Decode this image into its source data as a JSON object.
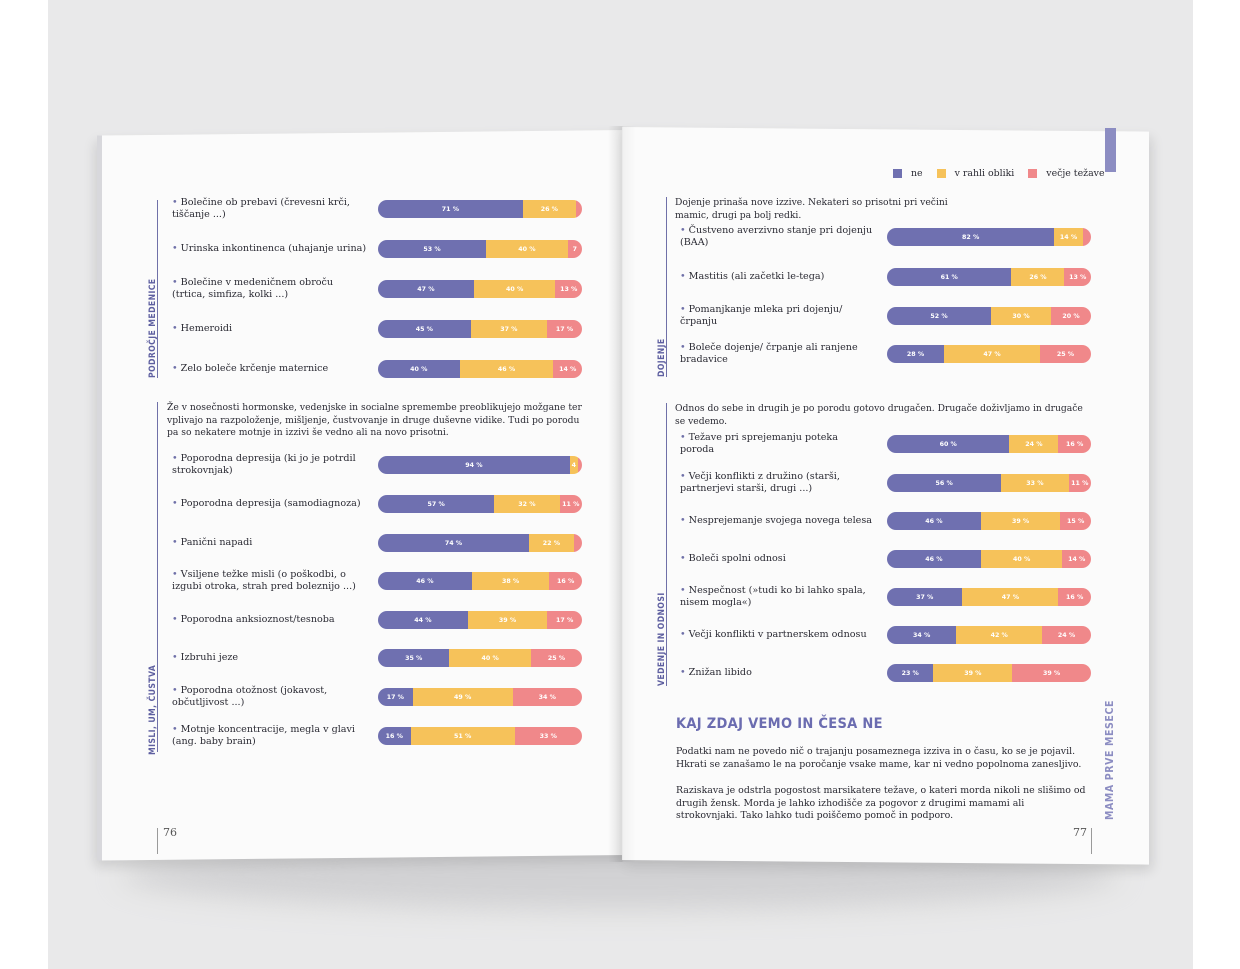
{
  "colors": {
    "ne": "#6f70b0",
    "v_rahli_obliki": "#f6c25a",
    "vecje_tezave": "#f0888a"
  },
  "legend": [
    {
      "label": "ne",
      "color": "#6f70b0"
    },
    {
      "label": "v rahli obliki",
      "color": "#f6c25a"
    },
    {
      "label": "večje težave",
      "color": "#f0888a"
    }
  ],
  "left_page": {
    "page_number": "76",
    "section_pelvis_title": "PODROČJE MEDENICE",
    "section_mind_title": "MISLI, UM, ČUSTVA",
    "mind_intro": "Že v nosečnosti hormonske, vedenjske in socialne spremembe preoblikujejo možgane ter vplivajo na razpoloženje, mišljenje, čustvovanje in druge duševne vidike. Tudi po porodu pa so nekatere motnje in izzivi še vedno ali na novo prisotni."
  },
  "right_page": {
    "page_number": "77",
    "section_feeding_title": "DOJENJE",
    "section_behaviour_title": "VEDENJE IN ODNOSI",
    "feeding_intro": "Dojenje prinaša nove izzive. Nekateri so prisotni pri večini mamic, drugi pa bolj redki.",
    "behaviour_intro": "Odnos do sebe in drugih je po porodu gotovo drugačen. Drugače doživljamo in drugače se vedemo.",
    "heading": "KAJ ZDAJ VEMO IN ČESA NE",
    "paragraph_1": "Podatki nam ne povedo nič o trajanju posameznega izziva in o času, ko se je pojavil. Hkrati se zanašamo le na poročanje vsake mame, kar ni vedno popolnoma zanesljivo.",
    "paragraph_2": "Raziskava je odstrla pogostost marsikatere težave, o kateri morda nikoli ne slišimo od drugih žensk. Morda je lahko izhodišče za pogovor z drugimi mamami ali strokovnjaki. Tako lahko tudi poiščemo pomoč in podporo.",
    "running_title": "MAMA PRVE MESECE"
  },
  "chart_data": [
    {
      "type": "bar",
      "orientation": "horizontal-stacked-100",
      "section": "PODROČJE MEDENICE",
      "series_names": [
        "ne",
        "v rahli obliki",
        "večje težave"
      ],
      "items": [
        {
          "label": "Bolečine ob prebavi (črevesni krči, tiščanje ...)",
          "values": [
            71,
            26,
            3
          ],
          "labels": [
            "71 %",
            "26 %",
            ""
          ]
        },
        {
          "label": "Urinska inkontinenca (uhajanje urina)",
          "values": [
            53,
            40,
            7
          ],
          "labels": [
            "53 %",
            "40 %",
            "7"
          ]
        },
        {
          "label": "Bolečine v medeničnem obroču (trtica, simfiza, kolki ...)",
          "values": [
            47,
            40,
            13
          ],
          "labels": [
            "47 %",
            "40 %",
            "13 %"
          ]
        },
        {
          "label": "Hemeroidi",
          "values": [
            45,
            37,
            17
          ],
          "labels": [
            "45 %",
            "37 %",
            "17 %"
          ]
        },
        {
          "label": "Zelo boleče krčenje maternice",
          "values": [
            40,
            46,
            14
          ],
          "labels": [
            "40 %",
            "46 %",
            "14 %"
          ]
        }
      ]
    },
    {
      "type": "bar",
      "orientation": "horizontal-stacked-100",
      "section": "MISLI, UM, ČUSTVA",
      "series_names": [
        "ne",
        "v rahli obliki",
        "večje težave"
      ],
      "items": [
        {
          "label": "Poporodna depresija (ki jo je potrdil strokovnjak)",
          "values": [
            94,
            4,
            2
          ],
          "labels": [
            "94 %",
            "4",
            ""
          ]
        },
        {
          "label": "Poporodna depresija (samodiagnoza)",
          "values": [
            57,
            32,
            11
          ],
          "labels": [
            "57 %",
            "32 %",
            "11 %"
          ]
        },
        {
          "label": "Panični napadi",
          "values": [
            74,
            22,
            4
          ],
          "labels": [
            "74 %",
            "22 %",
            ""
          ]
        },
        {
          "label": "Vsiljene težke misli (o poškodbi, o izgubi otroka, strah pred boleznijo ...)",
          "values": [
            46,
            38,
            16
          ],
          "labels": [
            "46 %",
            "38 %",
            "16 %"
          ]
        },
        {
          "label": "Poporodna anksioznost/tesnoba",
          "values": [
            44,
            39,
            17
          ],
          "labels": [
            "44 %",
            "39 %",
            "17 %"
          ]
        },
        {
          "label": "Izbruhi jeze",
          "values": [
            35,
            40,
            25
          ],
          "labels": [
            "35 %",
            "40 %",
            "25 %"
          ]
        },
        {
          "label": "Poporodna otožnost (jokavost, občutljivost ...)",
          "values": [
            17,
            49,
            34
          ],
          "labels": [
            "17 %",
            "49 %",
            "34 %"
          ]
        },
        {
          "label": "Motnje koncentracije, megla v glavi (ang. baby brain)",
          "values": [
            16,
            51,
            33
          ],
          "labels": [
            "16 %",
            "51 %",
            "33 %"
          ]
        }
      ]
    },
    {
      "type": "bar",
      "orientation": "horizontal-stacked-100",
      "section": "DOJENJE",
      "series_names": [
        "ne",
        "v rahli obliki",
        "večje težave"
      ],
      "items": [
        {
          "label": "Čustveno averzivno stanje pri dojenju (BAA)",
          "values": [
            82,
            14,
            4
          ],
          "labels": [
            "82 %",
            "14 %",
            ""
          ]
        },
        {
          "label": "Mastitis (ali začetki le-tega)",
          "values": [
            61,
            26,
            13
          ],
          "labels": [
            "61 %",
            "26 %",
            "13 %"
          ]
        },
        {
          "label": "Pomanjkanje mleka pri dojenju/ črpanju",
          "values": [
            52,
            30,
            20
          ],
          "labels": [
            "52 %",
            "30 %",
            "20 %"
          ]
        },
        {
          "label": "Boleče dojenje/ črpanje ali ranjene bradavice",
          "values": [
            28,
            47,
            25
          ],
          "labels": [
            "28 %",
            "47 %",
            "25 %"
          ]
        }
      ]
    },
    {
      "type": "bar",
      "orientation": "horizontal-stacked-100",
      "section": "VEDENJE IN ODNOSI",
      "series_names": [
        "ne",
        "v rahli obliki",
        "večje težave"
      ],
      "items": [
        {
          "label": "Težave pri sprejemanju poteka poroda",
          "values": [
            60,
            24,
            16
          ],
          "labels": [
            "60 %",
            "24 %",
            "16 %"
          ]
        },
        {
          "label": "Večji konflikti z družino (starši, partnerjevi starši, drugi ...)",
          "values": [
            56,
            33,
            11
          ],
          "labels": [
            "56 %",
            "33 %",
            "11 %"
          ]
        },
        {
          "label": "Nesprejemanje svojega novega telesa",
          "values": [
            46,
            39,
            15
          ],
          "labels": [
            "46 %",
            "39 %",
            "15 %"
          ]
        },
        {
          "label": "Boleči spolni odnosi",
          "values": [
            46,
            40,
            14
          ],
          "labels": [
            "46 %",
            "40 %",
            "14 %"
          ]
        },
        {
          "label": "Nespečnost (»tudi ko bi lahko spala, nisem mogla«)",
          "values": [
            37,
            47,
            16
          ],
          "labels": [
            "37 %",
            "47 %",
            "16 %"
          ]
        },
        {
          "label": "Večji konflikti v partnerskem odnosu",
          "values": [
            34,
            42,
            24
          ],
          "labels": [
            "34 %",
            "42 %",
            "24 %"
          ]
        },
        {
          "label": "Znižan libido",
          "values": [
            23,
            39,
            39
          ],
          "labels": [
            "23 %",
            "39 %",
            "39 %"
          ]
        }
      ]
    }
  ]
}
